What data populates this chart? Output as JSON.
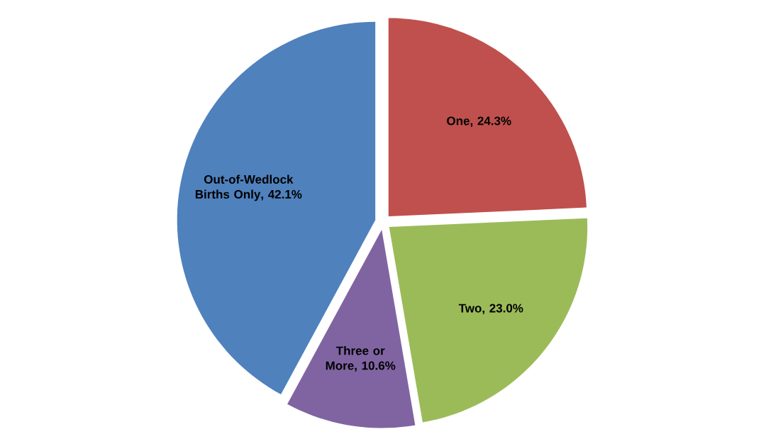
{
  "chart_data": {
    "type": "pie",
    "categories": [
      "One",
      "Two",
      "Three or More",
      "Out-of-Wedlock Births Only"
    ],
    "values": [
      24.3,
      23.0,
      10.6,
      42.1
    ],
    "value_labels": [
      ", 24.3%",
      ", 23.0%",
      ", 10.6%",
      ", 42.1%"
    ],
    "colors": [
      "#c0504d",
      "#9bbb59",
      "#8064a2",
      "#4f81bd"
    ]
  }
}
